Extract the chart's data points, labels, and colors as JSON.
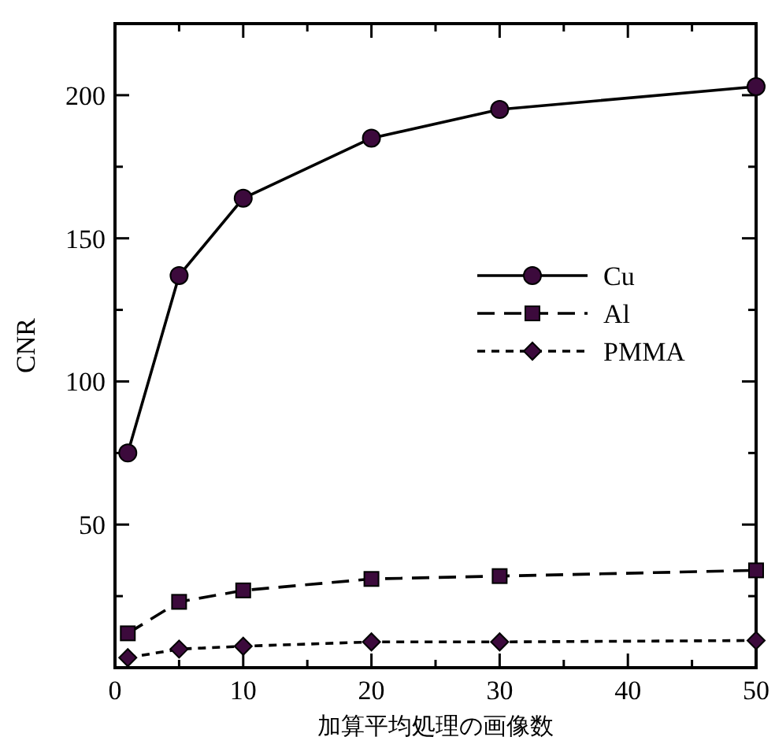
{
  "chart_data": {
    "type": "line",
    "xlabel": "加算平均処理の画像数",
    "ylabel": "CNR",
    "xlim": [
      0,
      50
    ],
    "xticks": [
      0,
      {
        "value": 5,
        "label": null
      },
      10,
      {
        "value": 15,
        "label": null
      },
      20,
      {
        "value": 25,
        "label": null
      },
      30,
      {
        "value": 35,
        "label": null
      },
      40,
      {
        "value": 45,
        "label": null
      },
      50
    ],
    "ylim": [
      0,
      225
    ],
    "yticks": [
      {
        "value": 0,
        "label": null
      },
      {
        "value": 25,
        "label": null
      },
      50,
      {
        "value": 75,
        "label": null
      },
      100,
      {
        "value": 125,
        "label": null
      },
      150,
      {
        "value": 175,
        "label": null
      },
      200
    ],
    "grid": false,
    "legend": "right",
    "series": [
      {
        "name": "Cu",
        "color": "#3c0a3c",
        "marker": "circle",
        "line_style": "solid",
        "x": [
          1,
          5,
          10,
          20,
          30,
          50
        ],
        "values": [
          75,
          137,
          164,
          185,
          195,
          203
        ]
      },
      {
        "name": "Al",
        "color": "#3c0a3c",
        "marker": "square",
        "line_style": "dashed",
        "x": [
          1,
          5,
          10,
          20,
          30,
          50
        ],
        "values": [
          12,
          23,
          27,
          31,
          32,
          34
        ]
      },
      {
        "name": "PMMA",
        "color": "#3c0a3c",
        "marker": "diamond",
        "line_style": "dotted",
        "x": [
          1,
          5,
          10,
          20,
          30,
          50
        ],
        "values": [
          3.5,
          6.5,
          7.5,
          9,
          9,
          9.5
        ]
      }
    ]
  }
}
